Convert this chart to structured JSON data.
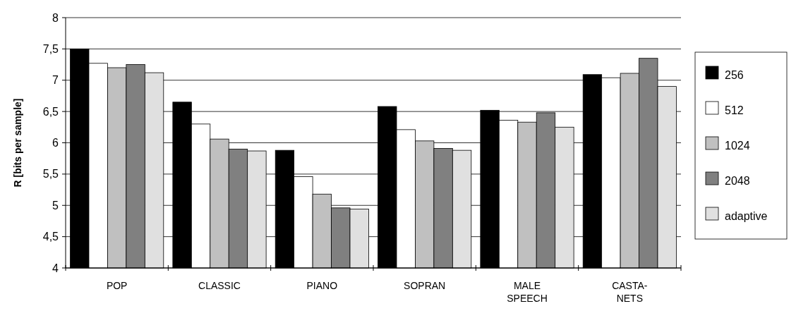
{
  "chart_data": {
    "type": "bar",
    "ylabel": "R [bits per sample]",
    "categories": [
      "POP",
      "CLASSIC",
      "PIANO",
      "SOPRAN",
      "MALE\nSPEECH",
      "CASTA-\nNETS"
    ],
    "series": [
      {
        "name": "256",
        "color": "#000000",
        "values": [
          7.5,
          6.65,
          5.88,
          6.58,
          6.52,
          7.09
        ]
      },
      {
        "name": "512",
        "color": "#ffffff",
        "values": [
          7.27,
          6.3,
          5.46,
          6.21,
          6.36,
          7.04
        ]
      },
      {
        "name": "1024",
        "color": "#c0c0c0",
        "values": [
          7.2,
          6.06,
          5.18,
          6.03,
          6.33,
          7.11
        ]
      },
      {
        "name": "2048",
        "color": "#808080",
        "values": [
          7.25,
          5.9,
          4.96,
          5.91,
          6.48,
          7.35
        ]
      },
      {
        "name": "adaptive",
        "color": "#e0e0e0",
        "values": [
          7.12,
          5.87,
          4.94,
          5.88,
          6.25,
          6.9
        ]
      }
    ],
    "ylim": [
      4,
      8
    ],
    "yticks": [
      4,
      {
        "value": 4.5,
        "label": "4,5"
      },
      5,
      {
        "value": 5.5,
        "label": "5,5"
      },
      6,
      {
        "value": 6.5,
        "label": "6,5"
      },
      7,
      {
        "value": 7.5,
        "label": "7,5"
      },
      8
    ],
    "grid": "y",
    "legend": "right"
  }
}
